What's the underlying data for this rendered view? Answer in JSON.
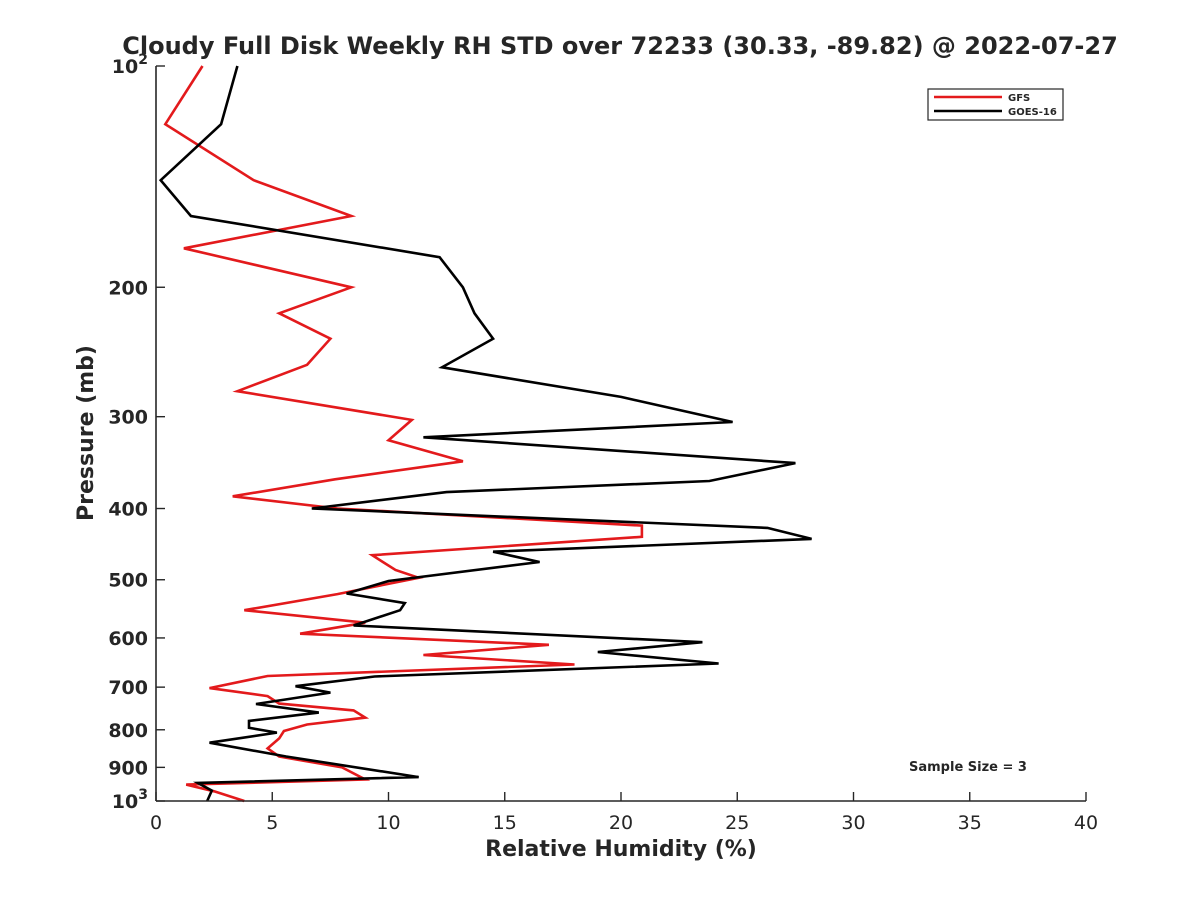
{
  "chart_data": {
    "type": "line",
    "title": "Cloudy Full Disk Weekly RH STD over 72233 (30.33, -89.82) @ 2022-07-27",
    "xlabel": "Relative Humidity (%)",
    "ylabel": "Pressure (mb)",
    "xlim": [
      0,
      40
    ],
    "ylim": [
      100,
      1000
    ],
    "yscale": "log",
    "yreversed": true,
    "x_ticks": [
      0,
      5,
      10,
      15,
      20,
      25,
      30,
      35,
      40
    ],
    "y_ticks": [
      {
        "value": 100,
        "base": "10",
        "exp": "2"
      },
      {
        "value": 200,
        "label": "200"
      },
      {
        "value": 300,
        "label": "300"
      },
      {
        "value": 400,
        "label": "400"
      },
      {
        "value": 500,
        "label": "500"
      },
      {
        "value": 600,
        "label": "600"
      },
      {
        "value": 700,
        "label": "700"
      },
      {
        "value": 800,
        "label": "800"
      },
      {
        "value": 900,
        "label": "900"
      },
      {
        "value": 1000,
        "base": "10",
        "exp": "3"
      }
    ],
    "legend_position": "top-right",
    "annotation": "Sample Size = 3",
    "series": [
      {
        "name": "GFS",
        "color": "#e31a1c",
        "points": [
          [
            2.0,
            100
          ],
          [
            0.4,
            120
          ],
          [
            4.2,
            143
          ],
          [
            8.4,
            160
          ],
          [
            1.2,
            177
          ],
          [
            8.4,
            200
          ],
          [
            5.3,
            217
          ],
          [
            7.5,
            235
          ],
          [
            6.5,
            255
          ],
          [
            3.5,
            277
          ],
          [
            11.0,
            303
          ],
          [
            10.0,
            323
          ],
          [
            13.2,
            345
          ],
          [
            7.7,
            365
          ],
          [
            3.3,
            385
          ],
          [
            7.8,
            400
          ],
          [
            20.9,
            422
          ],
          [
            20.9,
            437
          ],
          [
            9.3,
            463
          ],
          [
            10.3,
            485
          ],
          [
            11.3,
            497
          ],
          [
            7.8,
            523
          ],
          [
            3.8,
            550
          ],
          [
            9.0,
            572
          ],
          [
            6.2,
            592
          ],
          [
            16.9,
            613
          ],
          [
            11.5,
            633
          ],
          [
            18.0,
            652
          ],
          [
            4.8,
            676
          ],
          [
            2.3,
            702
          ],
          [
            4.8,
            720
          ],
          [
            5.3,
            737
          ],
          [
            8.5,
            753
          ],
          [
            9.0,
            770
          ],
          [
            6.5,
            787
          ],
          [
            5.5,
            803
          ],
          [
            5.3,
            822
          ],
          [
            4.8,
            848
          ],
          [
            5.3,
            870
          ],
          [
            8.0,
            900
          ],
          [
            9.0,
            935
          ],
          [
            1.3,
            950
          ],
          [
            2.5,
            970
          ],
          [
            3.8,
            1000
          ]
        ]
      },
      {
        "name": "GOES-16",
        "color": "#000000",
        "points": [
          [
            3.5,
            100
          ],
          [
            2.8,
            120
          ],
          [
            0.2,
            143
          ],
          [
            1.5,
            160
          ],
          [
            12.2,
            182
          ],
          [
            13.2,
            200
          ],
          [
            13.7,
            217
          ],
          [
            14.5,
            235
          ],
          [
            12.3,
            257
          ],
          [
            20.0,
            282
          ],
          [
            24.8,
            305
          ],
          [
            11.5,
            320
          ],
          [
            27.5,
            347
          ],
          [
            23.8,
            367
          ],
          [
            12.5,
            380
          ],
          [
            6.7,
            400
          ],
          [
            26.3,
            425
          ],
          [
            28.2,
            440
          ],
          [
            14.5,
            458
          ],
          [
            16.5,
            473
          ],
          [
            10.0,
            502
          ],
          [
            8.2,
            522
          ],
          [
            10.7,
            538
          ],
          [
            10.5,
            550
          ],
          [
            8.5,
            577
          ],
          [
            23.5,
            608
          ],
          [
            19.0,
            627
          ],
          [
            24.2,
            650
          ],
          [
            9.4,
            677
          ],
          [
            6.0,
            698
          ],
          [
            7.5,
            712
          ],
          [
            4.3,
            738
          ],
          [
            7.0,
            758
          ],
          [
            4.0,
            778
          ],
          [
            4.0,
            795
          ],
          [
            5.2,
            807
          ],
          [
            2.3,
            833
          ],
          [
            5.6,
            870
          ],
          [
            11.3,
            928
          ],
          [
            1.8,
            945
          ],
          [
            2.4,
            968
          ],
          [
            2.2,
            1000
          ]
        ]
      }
    ]
  }
}
